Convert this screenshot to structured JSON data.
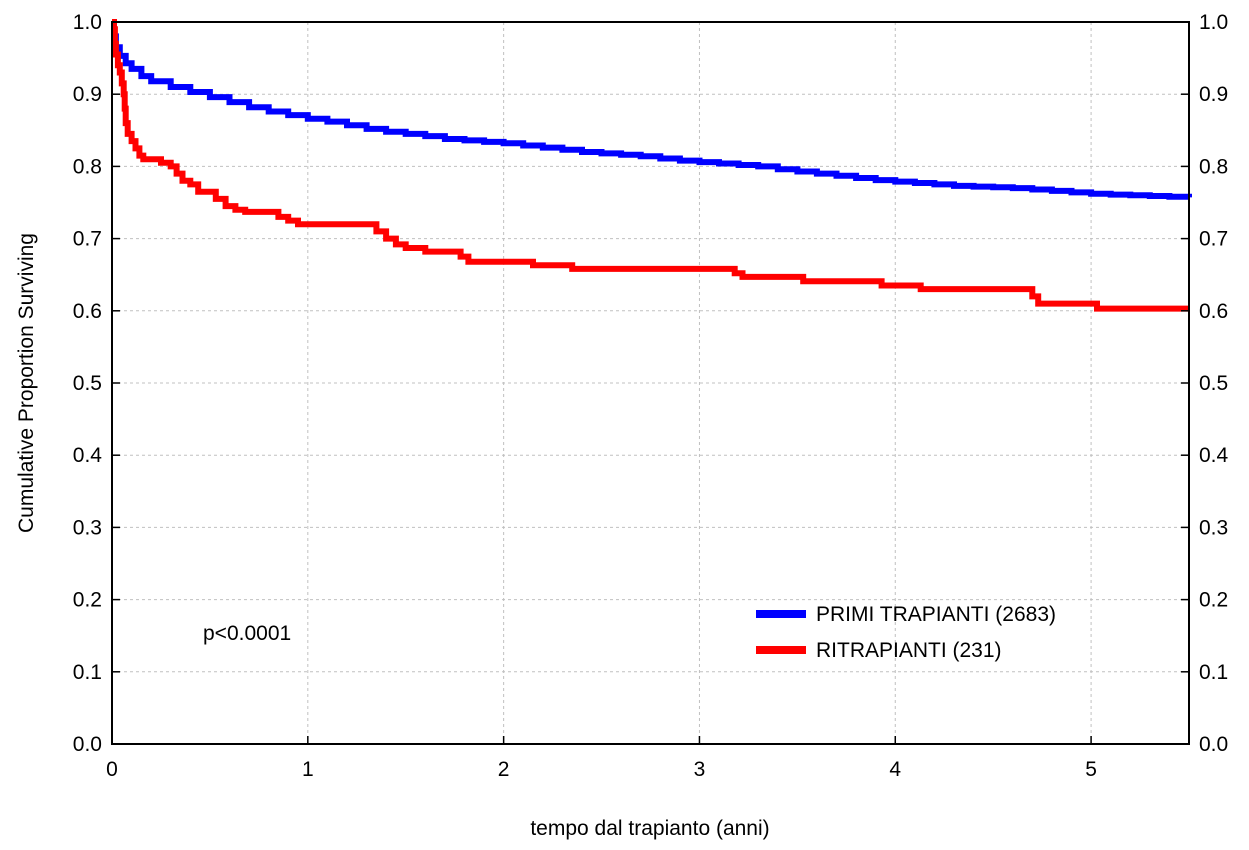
{
  "chart_data": {
    "type": "line",
    "title": "",
    "xlabel": "tempo dal trapianto (anni)",
    "ylabel": "Cumulative Proportion Surviving",
    "xlim": [
      0,
      5.5
    ],
    "ylim": [
      0,
      1.0
    ],
    "x_ticks": [
      0,
      1,
      2,
      3,
      4,
      5
    ],
    "x_tick_labels": [
      "0",
      "1",
      "2",
      "3",
      "4",
      "5"
    ],
    "y_ticks": [
      0.0,
      0.1,
      0.2,
      0.3,
      0.4,
      0.5,
      0.6,
      0.7,
      0.8,
      0.9,
      1.0
    ],
    "y_tick_labels": [
      "0.0",
      "0.1",
      "0.2",
      "0.3",
      "0.4",
      "0.5",
      "0.6",
      "0.7",
      "0.8",
      "0.9",
      "1.0"
    ],
    "right_axis_labels": true,
    "grid": true,
    "legend_position": "bottom-right",
    "annotation": "p<0.0001",
    "series": [
      {
        "name": "PRIMI TRAPIANTI (2683)",
        "color": "#0000ff",
        "points": [
          [
            0,
            1.0
          ],
          [
            0.01,
            0.98
          ],
          [
            0.02,
            0.965
          ],
          [
            0.04,
            0.953
          ],
          [
            0.07,
            0.943
          ],
          [
            0.1,
            0.935
          ],
          [
            0.15,
            0.925
          ],
          [
            0.2,
            0.918
          ],
          [
            0.3,
            0.91
          ],
          [
            0.4,
            0.903
          ],
          [
            0.5,
            0.896
          ],
          [
            0.6,
            0.889
          ],
          [
            0.7,
            0.882
          ],
          [
            0.8,
            0.876
          ],
          [
            0.9,
            0.871
          ],
          [
            1.0,
            0.866
          ],
          [
            1.1,
            0.862
          ],
          [
            1.2,
            0.857
          ],
          [
            1.3,
            0.852
          ],
          [
            1.4,
            0.848
          ],
          [
            1.5,
            0.845
          ],
          [
            1.6,
            0.842
          ],
          [
            1.7,
            0.838
          ],
          [
            1.8,
            0.836
          ],
          [
            1.9,
            0.834
          ],
          [
            2.0,
            0.832
          ],
          [
            2.1,
            0.829
          ],
          [
            2.2,
            0.826
          ],
          [
            2.3,
            0.823
          ],
          [
            2.4,
            0.82
          ],
          [
            2.5,
            0.818
          ],
          [
            2.6,
            0.816
          ],
          [
            2.7,
            0.814
          ],
          [
            2.8,
            0.811
          ],
          [
            2.9,
            0.808
          ],
          [
            3.0,
            0.806
          ],
          [
            3.1,
            0.804
          ],
          [
            3.2,
            0.802
          ],
          [
            3.3,
            0.8
          ],
          [
            3.4,
            0.796
          ],
          [
            3.5,
            0.793
          ],
          [
            3.6,
            0.79
          ],
          [
            3.7,
            0.787
          ],
          [
            3.8,
            0.784
          ],
          [
            3.9,
            0.781
          ],
          [
            4.0,
            0.779
          ],
          [
            4.1,
            0.777
          ],
          [
            4.2,
            0.775
          ],
          [
            4.3,
            0.773
          ],
          [
            4.4,
            0.772
          ],
          [
            4.5,
            0.771
          ],
          [
            4.6,
            0.77
          ],
          [
            4.7,
            0.768
          ],
          [
            4.8,
            0.766
          ],
          [
            4.9,
            0.764
          ],
          [
            5.0,
            0.762
          ],
          [
            5.1,
            0.761
          ],
          [
            5.2,
            0.76
          ],
          [
            5.3,
            0.759
          ],
          [
            5.4,
            0.758
          ],
          [
            5.5,
            0.757
          ]
        ]
      },
      {
        "name": "RITRAPIANTI (231)",
        "color": "#ff0000",
        "points": [
          [
            0,
            1.0
          ],
          [
            0.01,
            0.99
          ],
          [
            0.015,
            0.97
          ],
          [
            0.02,
            0.955
          ],
          [
            0.03,
            0.94
          ],
          [
            0.04,
            0.93
          ],
          [
            0.05,
            0.915
          ],
          [
            0.06,
            0.9
          ],
          [
            0.065,
            0.88
          ],
          [
            0.07,
            0.86
          ],
          [
            0.08,
            0.845
          ],
          [
            0.1,
            0.835
          ],
          [
            0.12,
            0.825
          ],
          [
            0.14,
            0.815
          ],
          [
            0.16,
            0.81
          ],
          [
            0.2,
            0.81
          ],
          [
            0.25,
            0.805
          ],
          [
            0.3,
            0.8
          ],
          [
            0.33,
            0.79
          ],
          [
            0.36,
            0.78
          ],
          [
            0.4,
            0.775
          ],
          [
            0.44,
            0.765
          ],
          [
            0.5,
            0.765
          ],
          [
            0.53,
            0.755
          ],
          [
            0.58,
            0.745
          ],
          [
            0.63,
            0.74
          ],
          [
            0.68,
            0.737
          ],
          [
            0.8,
            0.737
          ],
          [
            0.85,
            0.73
          ],
          [
            0.9,
            0.725
          ],
          [
            0.95,
            0.72
          ],
          [
            1.3,
            0.72
          ],
          [
            1.35,
            0.71
          ],
          [
            1.4,
            0.7
          ],
          [
            1.45,
            0.692
          ],
          [
            1.5,
            0.687
          ],
          [
            1.6,
            0.682
          ],
          [
            1.75,
            0.682
          ],
          [
            1.78,
            0.675
          ],
          [
            1.82,
            0.668
          ],
          [
            2.1,
            0.668
          ],
          [
            2.15,
            0.663
          ],
          [
            2.3,
            0.663
          ],
          [
            2.35,
            0.658
          ],
          [
            3.15,
            0.658
          ],
          [
            3.18,
            0.652
          ],
          [
            3.22,
            0.647
          ],
          [
            3.5,
            0.647
          ],
          [
            3.53,
            0.641
          ],
          [
            3.9,
            0.641
          ],
          [
            3.93,
            0.635
          ],
          [
            4.1,
            0.635
          ],
          [
            4.13,
            0.63
          ],
          [
            4.65,
            0.63
          ],
          [
            4.7,
            0.62
          ],
          [
            4.73,
            0.61
          ],
          [
            5.0,
            0.61
          ],
          [
            5.03,
            0.603
          ],
          [
            5.5,
            0.603
          ]
        ]
      }
    ]
  }
}
